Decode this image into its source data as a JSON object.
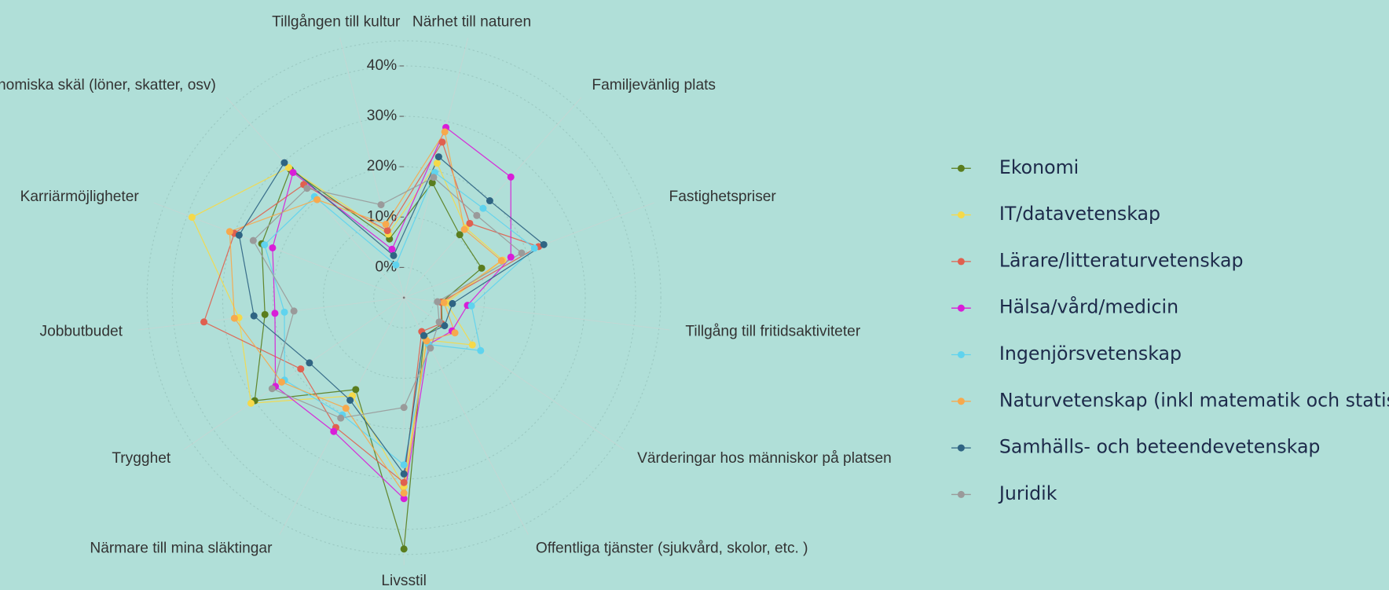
{
  "chart_data": {
    "type": "radar",
    "categories": [
      "Närhet till naturen",
      "Familjevänlig plats",
      "Fastighetspriser",
      "Tillgång till fritidsaktiviteter",
      "Värderingar hos människor på platsen",
      "Offentliga tjänster (sjukvård, skolor, etc. )",
      "Livsstil",
      "Närmare till mina släktingar",
      "Trygghet",
      "Jobbutbudet",
      "Karriärmöjligheter",
      "Ekonomiska skäl (löner, skatter, osv)",
      "Tillgången till kultur"
    ],
    "ylim": [
      -6,
      45
    ],
    "yticks": [
      {
        "value": 0,
        "label": "0%"
      },
      {
        "value": 10,
        "label": "10%"
      },
      {
        "value": 20,
        "label": "20%"
      },
      {
        "value": 30,
        "label": "30%"
      },
      {
        "value": 40,
        "label": "40%"
      }
    ],
    "grid": true,
    "legend": "right",
    "series": [
      {
        "name": "Ekonomi",
        "color": "#5a7d1e",
        "values": [
          17.5,
          10.7,
          10.5,
          1.5,
          3.2,
          2.6,
          43.9,
          14.6,
          30,
          21.8,
          24.2,
          28,
          6
        ]
      },
      {
        "name": "IT/datavetenskap",
        "color": "#f5d94a",
        "values": [
          21.5,
          12.5,
          15,
          2.5,
          10.5,
          3.5,
          31.5,
          16,
          30.9,
          27,
          39,
          28.5,
          7
        ]
      },
      {
        "name": "Lärare/litteraturvetenskap",
        "color": "#e0604f",
        "values": [
          25.8,
          13.7,
          22.6,
          1.4,
          3,
          1.6,
          30.7,
          23.1,
          18.9,
          34,
          30,
          24,
          7.7
        ]
      },
      {
        "name": "Hälsa/vård/medicin",
        "color": "#d81ed8",
        "values": [
          28.8,
          26,
          16.7,
          6.7,
          5.6,
          4.5,
          33.9,
          24,
          25,
          19.8,
          21.9,
          27.2,
          3.9
        ]
      },
      {
        "name": "Ingenjörsvetenskap",
        "color": "#5fd3ee",
        "values": [
          19.6,
          17.7,
          21.7,
          7.5,
          12.5,
          4.5,
          27.2,
          20.3,
          22.8,
          17.9,
          23.6,
          20.8,
          0.7
        ]
      },
      {
        "name": "Naturvetenskap (inkl matematik och statistik)",
        "color": "#f7a94d",
        "values": [
          27.9,
          12.1,
          14.7,
          2,
          6.3,
          3.7,
          32.8,
          18.8,
          23.5,
          27.9,
          31,
          20,
          9
        ]
      },
      {
        "name": "Samhälls- och beteendevetenskap",
        "color": "#2f6483",
        "values": [
          22.8,
          19.7,
          23.7,
          3.7,
          3.8,
          2.5,
          29,
          17,
          16.8,
          24,
          29,
          29.8,
          2.6
        ]
      },
      {
        "name": "Juridik",
        "color": "#9a9a9a",
        "values": [
          18.6,
          15.8,
          19,
          0.7,
          2.5,
          5.3,
          15.8,
          21,
          25.8,
          16,
          26,
          23,
          13
        ]
      }
    ]
  }
}
